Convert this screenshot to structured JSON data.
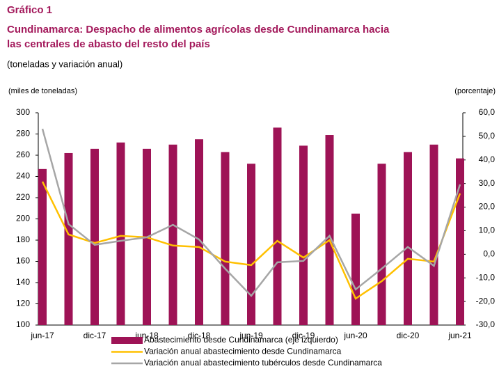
{
  "chart_data": {
    "type": "bar-line",
    "label": "Gráfico 1",
    "title": [
      "Cundinamarca: Despacho de alimentos agrícolas desde Cundinamarca hacia",
      "las centrales de abasto del resto del país"
    ],
    "subtitle": "(toneladas y variación anual)",
    "ylabel": "(miles de toneladas)",
    "y2label": "(porcentaje)",
    "categories": [
      "jun-17",
      null,
      "dic-17",
      null,
      "jun-18",
      null,
      "dic-18",
      null,
      "jun-19",
      null,
      "dic-19",
      null,
      "jun-20",
      null,
      "dic-20",
      null,
      "jun-21"
    ],
    "series": [
      {
        "name": "Abastecimiento desde Cundinamarca (eje izquierdo)",
        "color": "#9e1356",
        "kind": "bar",
        "values": [
          247,
          262,
          266,
          272,
          266,
          270,
          275,
          263,
          252,
          286,
          269,
          279,
          205,
          252,
          263,
          270,
          257
        ]
      },
      {
        "name": "Variación anual abastecimiento desde Cundinamarca",
        "color": "#ffc000",
        "kind": "line",
        "axis": "y2",
        "values": [
          30.8,
          8.4,
          4.8,
          7.8,
          7.2,
          3.7,
          3.1,
          -3.1,
          -4.6,
          5.7,
          -1.4,
          6.0,
          -18.8,
          -11.4,
          -1.9,
          -3.1,
          25.8
        ]
      },
      {
        "name": "Variación anual abastecimiento tubérculos desde Cundinamarca",
        "color": "#a6a6a6",
        "kind": "line",
        "axis": "y2",
        "values": [
          53.2,
          12.8,
          4.0,
          5.7,
          7.2,
          12.5,
          6.3,
          -6.1,
          -17.6,
          -3.4,
          -2.8,
          7.8,
          -14.9,
          -6.1,
          3.1,
          -4.9,
          29.6
        ]
      }
    ],
    "ylim": [
      100,
      300
    ],
    "yticks": [
      100,
      120,
      140,
      160,
      180,
      200,
      220,
      240,
      260,
      280,
      300
    ],
    "y2lim": [
      -30,
      60
    ],
    "y2ticks": [
      {
        "value": -30,
        "label": "-30,0"
      },
      {
        "value": -20,
        "label": "-20,0"
      },
      {
        "value": -10,
        "label": "-10,0"
      },
      {
        "value": 0,
        "label": "0,0"
      },
      {
        "value": 10,
        "label": "10,0"
      },
      {
        "value": 20,
        "label": "20,0"
      },
      {
        "value": 30,
        "label": "30,0"
      },
      {
        "value": 40,
        "label": "40,0"
      },
      {
        "value": 50,
        "label": "50,0"
      },
      {
        "value": 60,
        "label": "60,0"
      }
    ],
    "grid": false,
    "legend": "bottom"
  }
}
